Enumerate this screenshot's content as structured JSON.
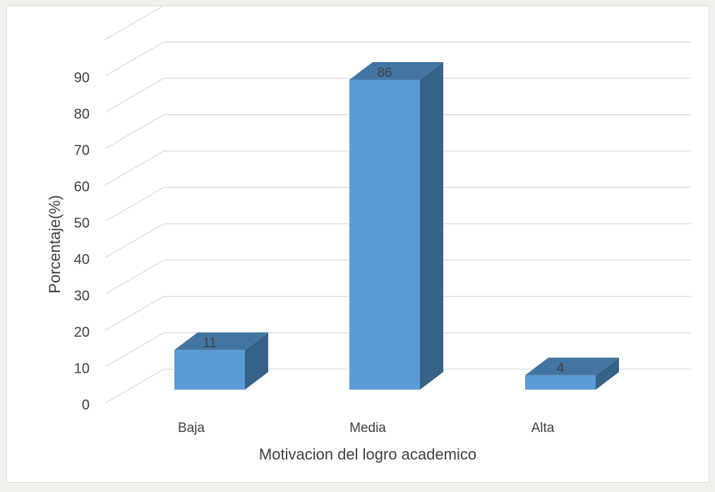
{
  "chart_data": {
    "type": "bar",
    "categories": [
      "Baja",
      "Media",
      "Alta"
    ],
    "values": [
      11,
      86,
      4
    ],
    "data_labels": [
      "11",
      "86",
      "4"
    ],
    "xlabel": "Motivacion del logro academico",
    "ylabel": "Porcentaje(%)",
    "ylim": [
      0,
      100
    ],
    "yticks": [
      "0",
      "10",
      "20",
      "30",
      "40",
      "50",
      "60",
      "70",
      "80",
      "90"
    ],
    "grid": true,
    "legend": "none",
    "style": "3d-column",
    "colors": {
      "bar_front": "#5b9bd5",
      "bar_side": "#376287",
      "bar_top": "#4275a2",
      "gridline": "#d9d9d9",
      "text": "#404040"
    }
  }
}
